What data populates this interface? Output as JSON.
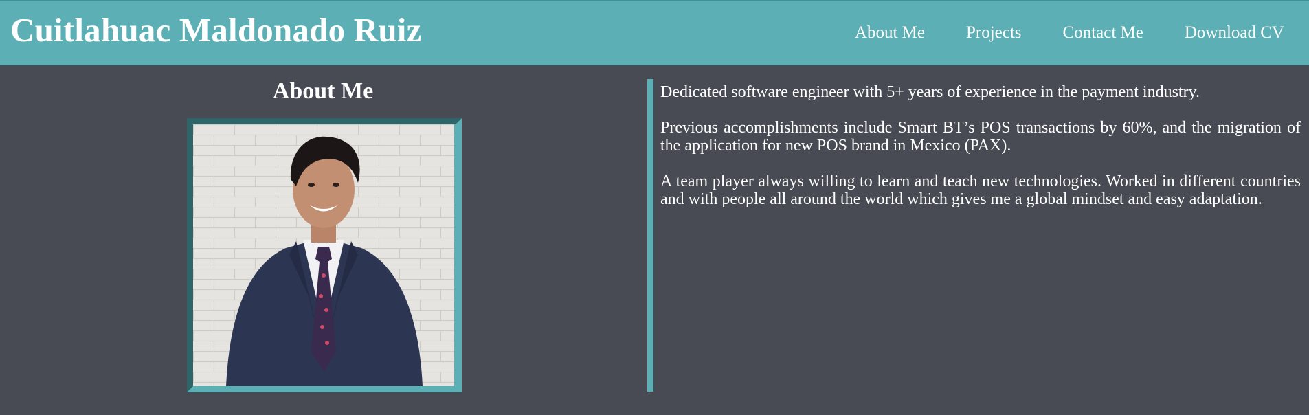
{
  "header": {
    "title": "Cuitlahuac Maldonado Ruiz",
    "nav": [
      {
        "label": "About Me"
      },
      {
        "label": "Projects"
      },
      {
        "label": "Contact Me"
      },
      {
        "label": "Download CV"
      }
    ]
  },
  "about": {
    "heading": "About Me",
    "photo_icon": "portrait-photo",
    "paragraphs": [
      "Dedicated software engineer with 5+ years of experience in the payment industry.",
      "Previous accomplishments include Smart BT’s POS transactions by 60%, and the migration of the application for new POS brand in Mexico (PAX).",
      "A team player always willing to learn and teach new technologies. Worked in different countries and with people all around the world which gives me a global mindset and easy adaptation."
    ]
  },
  "colors": {
    "header_bg": "#5cb0b5",
    "page_bg": "#484b53",
    "accent": "#5cb0b5",
    "text": "#ffffff"
  }
}
